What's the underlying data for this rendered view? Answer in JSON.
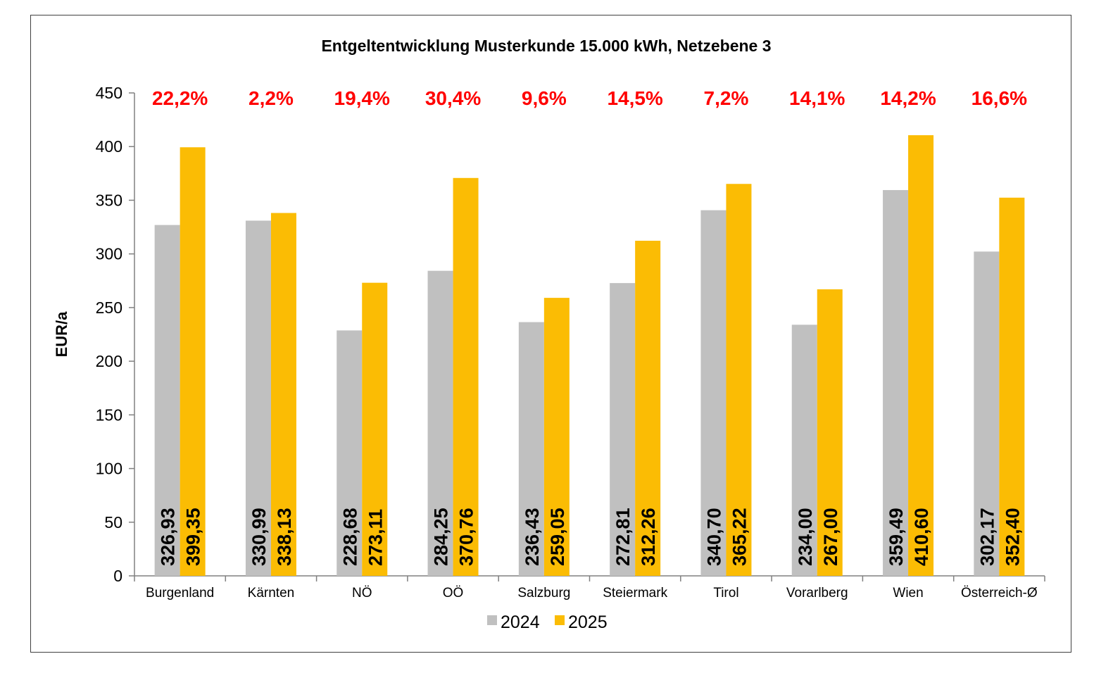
{
  "chart_data": {
    "type": "bar",
    "title": "Entgeltentwicklung Musterkunde 15.000 kWh, Netzebene 3",
    "ylabel": "EUR/a",
    "xlabel": "",
    "ylim": [
      0,
      450
    ],
    "yticks": [
      0,
      50,
      100,
      150,
      200,
      250,
      300,
      350,
      400,
      450
    ],
    "categories": [
      "Burgenland",
      "Kärnten",
      "NÖ",
      "OÖ",
      "Salzburg",
      "Steiermark",
      "Tirol",
      "Vorarlberg",
      "Wien",
      "Österreich-Ø"
    ],
    "series": [
      {
        "name": "2024",
        "color": "#c0c0c0",
        "values": [
          326.93,
          330.99,
          228.68,
          284.25,
          236.43,
          272.81,
          340.7,
          234.0,
          359.49,
          302.17
        ],
        "labels": [
          "326,93",
          "330,99",
          "228,68",
          "284,25",
          "236,43",
          "272,81",
          "340,70",
          "234,00",
          "359,49",
          "302,17"
        ]
      },
      {
        "name": "2025",
        "color": "#fbbc04",
        "values": [
          399.35,
          338.13,
          273.11,
          370.76,
          259.05,
          312.26,
          365.22,
          267.0,
          410.6,
          352.4
        ],
        "labels": [
          "399,35",
          "338,13",
          "273,11",
          "370,76",
          "259,05",
          "312,26",
          "365,22",
          "267,00",
          "410,60",
          "352,40"
        ]
      }
    ],
    "annotations": [
      "22,2%",
      "2,2%",
      "19,4%",
      "30,4%",
      "9,6%",
      "14,5%",
      "7,2%",
      "14,1%",
      "14,2%",
      "16,6%"
    ],
    "annotation_color": "#ff0000",
    "legend_position": "bottom-center",
    "grid": false
  }
}
